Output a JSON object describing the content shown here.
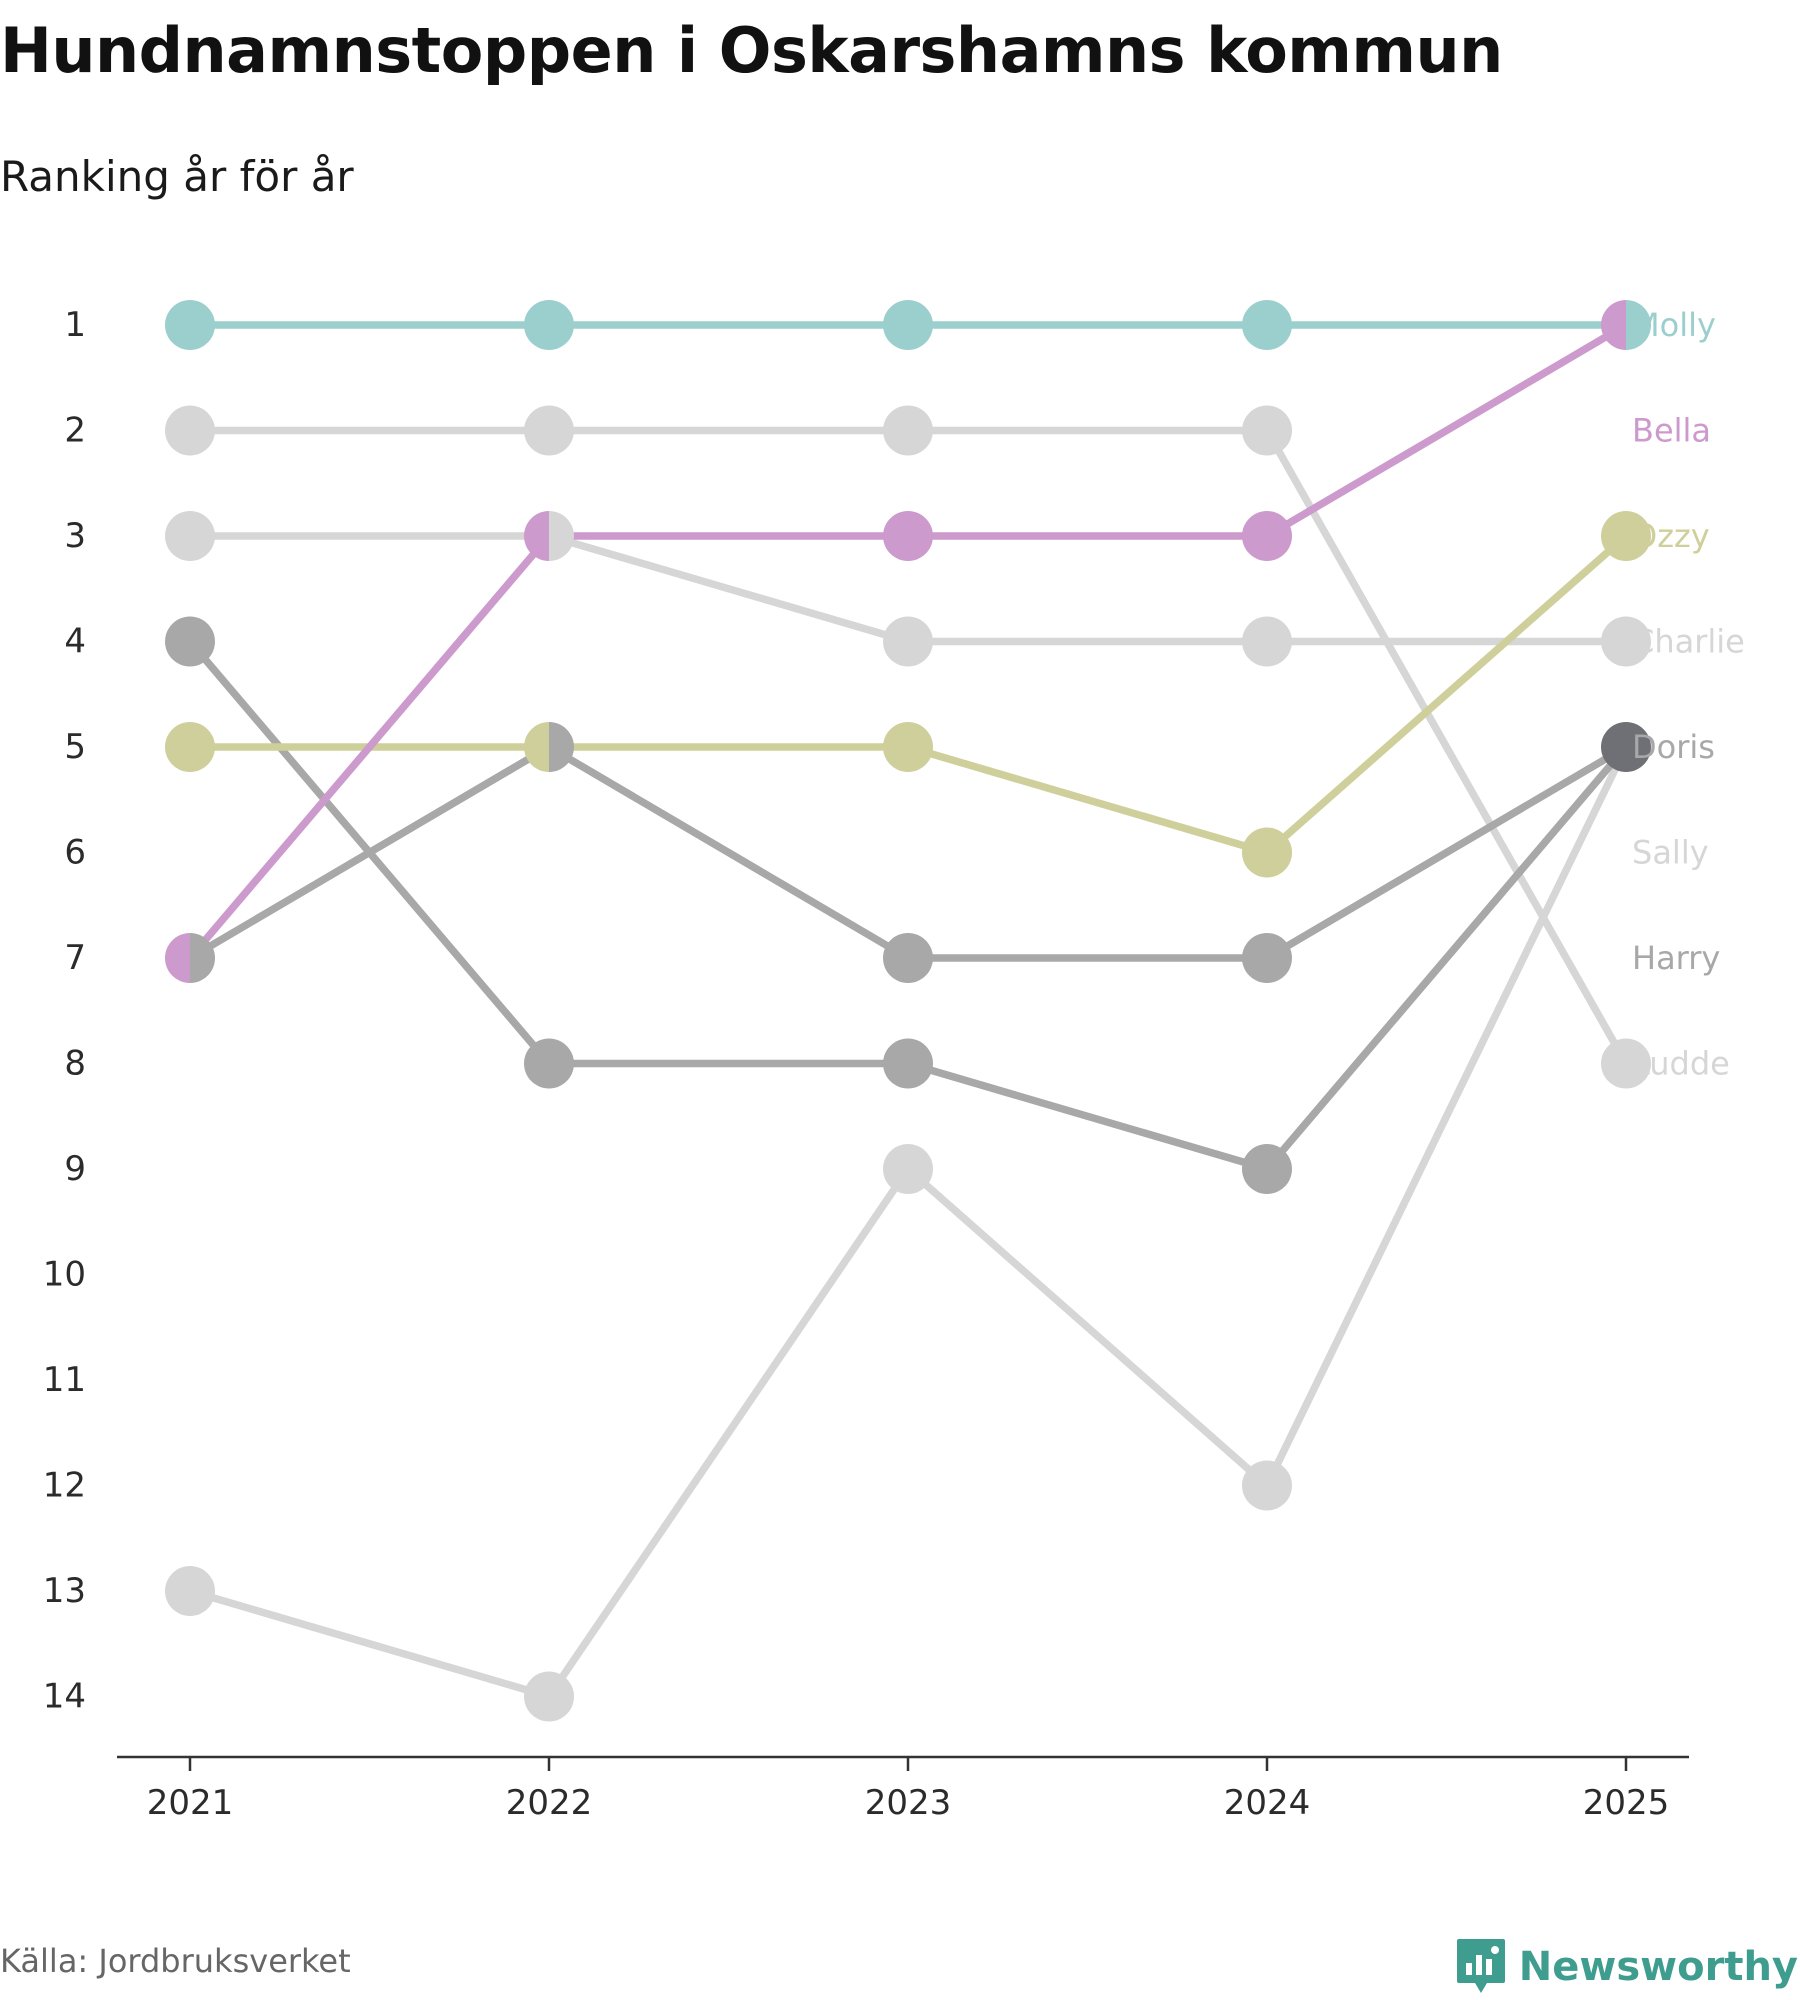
{
  "header": {
    "title": "Hundnamnstoppen i Oskarshamns kommun",
    "subtitle": "Ranking år för år"
  },
  "footer": {
    "source": "Källa: Jordbruksverket",
    "brand": "Newsworthy"
  },
  "colors": {
    "molly": "#9bcfcd",
    "bella": "#cc9acc",
    "ozzy": "#cfcf9b",
    "charlie": "#d6d6d6",
    "doris": "#a8a8a8",
    "doris_point_2025": "#6f6f76",
    "sally": "#d6d6d6",
    "harry": "#a8a8a8",
    "ludde": "#d6d6d6",
    "axis": "#333333",
    "brand": "#3f9d8f"
  },
  "chart_data": {
    "type": "line",
    "title": "Hundnamnstoppen i Oskarshamns kommun",
    "subtitle": "Ranking år för år",
    "xlabel": "",
    "ylabel": "",
    "x": [
      "2021",
      "2022",
      "2023",
      "2024",
      "2025"
    ],
    "y_ticks": [
      "1",
      "2",
      "3",
      "4",
      "5",
      "6",
      "7",
      "8",
      "9",
      "10",
      "11",
      "12",
      "13",
      "14"
    ],
    "ylim": [
      1,
      14
    ],
    "y_inverted": true,
    "grid": false,
    "series": [
      {
        "name": "Charlie",
        "color": "#d6d6d6",
        "values": [
          3,
          3,
          4,
          4,
          4
        ]
      },
      {
        "name": "Sally",
        "color": "#d6d6d6",
        "values": [
          13,
          14,
          9,
          12,
          5
        ]
      },
      {
        "name": "Ludde",
        "color": "#d6d6d6",
        "values": [
          2,
          2,
          2,
          2,
          8
        ]
      },
      {
        "name": "Harry",
        "color": "#a8a8a8",
        "values": [
          4,
          8,
          8,
          9,
          5
        ]
      },
      {
        "name": "Doris",
        "color": "#a8a8a8",
        "values": [
          7,
          5,
          7,
          7,
          5
        ]
      },
      {
        "name": "Ozzy",
        "color": "#cfcf9b",
        "values": [
          5,
          5,
          5,
          6,
          3
        ]
      },
      {
        "name": "Bella",
        "color": "#cc9acc",
        "values": [
          7,
          3,
          3,
          3,
          1
        ]
      },
      {
        "name": "Molly",
        "color": "#9bcfcd",
        "values": [
          1,
          1,
          1,
          1,
          1
        ]
      }
    ],
    "end_labels": [
      {
        "name": "Molly",
        "rank": 1,
        "color": "#9bcfcd"
      },
      {
        "name": "Bella",
        "rank": 2,
        "color": "#cc9acc"
      },
      {
        "name": "Ozzy",
        "rank": 3,
        "color": "#cfcf9b"
      },
      {
        "name": "Charlie",
        "rank": 4,
        "color": "#d6d6d6"
      },
      {
        "name": "Doris",
        "rank": 5,
        "color": "#a8a8a8"
      },
      {
        "name": "Sally",
        "rank": 6,
        "color": "#d6d6d6"
      },
      {
        "name": "Harry",
        "rank": 7,
        "color": "#a8a8a8"
      },
      {
        "name": "Ludde",
        "rank": 8,
        "color": "#d6d6d6"
      }
    ]
  }
}
